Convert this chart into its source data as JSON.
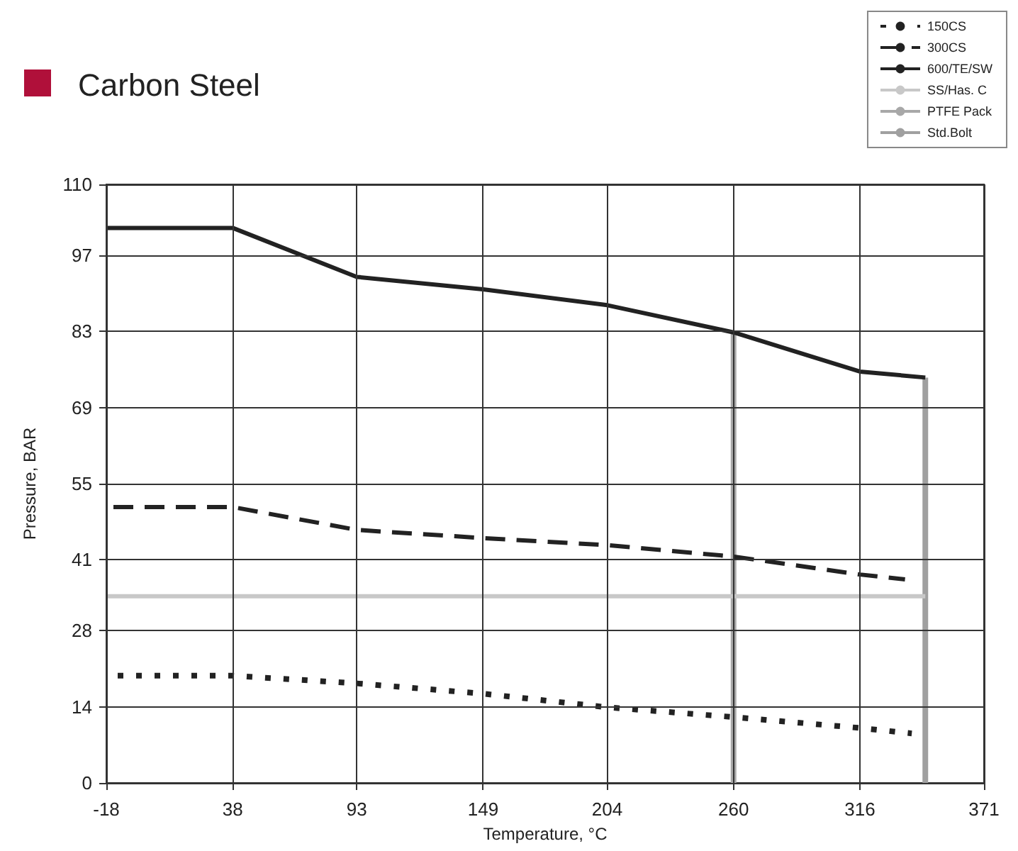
{
  "chart_data": {
    "type": "line",
    "title": "Carbon Steel",
    "xlabel": "Temperature, °C",
    "ylabel": "Pressure, BAR",
    "xlim": [
      -18,
      371
    ],
    "xticks": [
      -18,
      38,
      93,
      149,
      204,
      260,
      316,
      371
    ],
    "ylim": [
      0,
      110
    ],
    "yticks": [
      0,
      14,
      28,
      41,
      55,
      69,
      83,
      97,
      110
    ],
    "grid": true,
    "legend": "top right",
    "marker": "none",
    "series": [
      {
        "name": "150CS",
        "color": "#222222",
        "line_style": "dotted",
        "x": [
          -18,
          38,
          93,
          149,
          204,
          260,
          316,
          339
        ],
        "values": [
          19.7,
          19.7,
          18.3,
          16.4,
          13.9,
          12.1,
          10.1,
          9.1
        ]
      },
      {
        "name": "300CS",
        "color": "#222222",
        "line_style": "dashed",
        "x": [
          -18,
          38,
          93,
          149,
          204,
          260,
          316,
          336
        ],
        "values": [
          50.7,
          50.7,
          46.5,
          45.0,
          43.7,
          41.6,
          38.3,
          37.4
        ]
      },
      {
        "name": "600/TE/SW",
        "color": "#222222",
        "line_style": "solid",
        "x": [
          -18,
          38,
          93,
          149,
          204,
          260,
          316,
          345
        ],
        "values": [
          102,
          102,
          93.0,
          90.7,
          87.8,
          82.8,
          75.6,
          74.5
        ]
      },
      {
        "name": "SS/Has. C",
        "color": "#c8c8c8",
        "line_style": "solid",
        "x": [
          -18,
          345
        ],
        "values": [
          34.3,
          34.3
        ]
      },
      {
        "name": "PTFE Pack",
        "color": "#a8a8a8",
        "line_style": "solid",
        "x": [
          260,
          260
        ],
        "values": [
          0,
          82.8
        ]
      },
      {
        "name": "Std.Bolt",
        "color": "#a0a0a0",
        "line_style": "solid",
        "x": [
          345,
          345
        ],
        "values": [
          0,
          74.5
        ]
      }
    ]
  }
}
